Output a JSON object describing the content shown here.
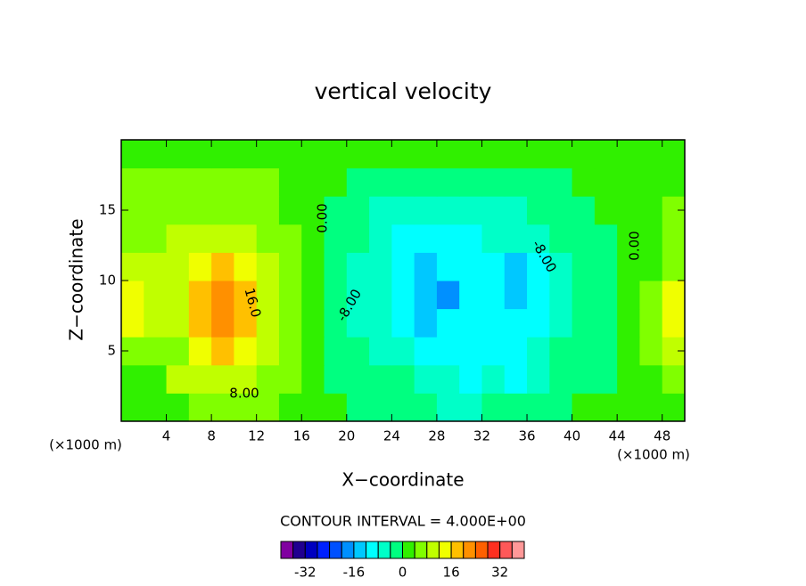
{
  "chart_data": {
    "type": "contour",
    "title": "vertical velocity",
    "x_label": "X−coordinate",
    "y_label": "Z−coordinate",
    "x_unit": "(×1000 m)",
    "y_unit": "(×1000 m)",
    "interval_text": "CONTOUR INTERVAL = 4.000E+00",
    "contour_labels": [
      "0.00",
      "16.0",
      "8.00",
      "-8.00"
    ],
    "xlim": [
      0,
      50
    ],
    "ylim": [
      0,
      20
    ],
    "xticks": [
      4,
      8,
      12,
      16,
      20,
      24,
      28,
      32,
      36,
      40,
      44,
      48
    ],
    "yticks": [
      5,
      10,
      15
    ],
    "x": [
      1,
      3,
      5,
      7,
      9,
      11,
      13,
      15,
      17,
      19,
      21,
      23,
      25,
      27,
      29,
      31,
      33,
      35,
      37,
      39,
      41,
      43,
      45,
      47,
      49
    ],
    "y": [
      1,
      3,
      5,
      7,
      9,
      11,
      13,
      15,
      17,
      19
    ],
    "z": [
      [
        2,
        1,
        2,
        5,
        5,
        5,
        4,
        2,
        1,
        0,
        -1,
        -1,
        -2,
        -2,
        -5,
        -6,
        -3,
        -2,
        -1,
        -1,
        1,
        1,
        1,
        2,
        3
      ],
      [
        3,
        2,
        8,
        9,
        9,
        9,
        6,
        4,
        1,
        -1,
        -2,
        -3,
        -4,
        -5,
        -8,
        -9,
        -8,
        -9,
        -5,
        -3,
        -1,
        -1,
        2,
        3,
        7
      ],
      [
        6,
        6,
        7,
        13,
        16,
        14,
        8,
        5,
        1,
        -2,
        -3,
        -6,
        -7,
        -9,
        -11,
        -10,
        -10,
        -9,
        -7,
        -4,
        -2,
        -1,
        1,
        4,
        9
      ],
      [
        12,
        8,
        8,
        17,
        20,
        18,
        9,
        5,
        1,
        -2,
        -5,
        -7,
        -10,
        -13,
        -12,
        -11,
        -11,
        -12,
        -9,
        -5,
        -3,
        -1,
        1,
        5,
        12
      ],
      [
        13,
        9,
        9,
        18,
        22,
        17,
        9,
        5,
        1,
        -2,
        -6,
        -8,
        -12,
        -14,
        -18,
        -10,
        -10,
        -14,
        -10,
        -5,
        -3,
        -1,
        1,
        4,
        13
      ],
      [
        9,
        8,
        9,
        14,
        18,
        14,
        8,
        5,
        1,
        -2,
        -5,
        -8,
        -11,
        -13,
        -11,
        -10,
        -10,
        -13,
        -9,
        -5,
        -3,
        -1,
        1,
        3,
        7
      ],
      [
        7,
        7,
        8,
        9,
        10,
        9,
        7,
        4,
        1,
        -2,
        -4,
        -6,
        -9,
        -10,
        -9,
        -9,
        -8,
        -8,
        -6,
        -3,
        -2,
        -1,
        1,
        3,
        6
      ],
      [
        6,
        6,
        7,
        7,
        7,
        7,
        6,
        3,
        1,
        -1,
        -3,
        -5,
        -6,
        -6,
        -7,
        -6,
        -6,
        -5,
        -4,
        -2,
        -1,
        1,
        1,
        3,
        5
      ],
      [
        5,
        5,
        5,
        5,
        5,
        5,
        4,
        3,
        1,
        1,
        -1,
        -2,
        -3,
        -3,
        -3,
        -3,
        -3,
        -2,
        -2,
        -1,
        1,
        1,
        1,
        2,
        3
      ],
      [
        2,
        2,
        2,
        2,
        2,
        2,
        2,
        2,
        1,
        1,
        1,
        1,
        1,
        1,
        1,
        1,
        1,
        1,
        1,
        1,
        1,
        1,
        1,
        2,
        2
      ]
    ],
    "colorbar": {
      "levels": [
        -40,
        -36,
        -32,
        -28,
        -24,
        -20,
        -16,
        -12,
        -8,
        -4,
        0,
        4,
        8,
        12,
        16,
        20,
        24,
        28,
        32,
        36,
        40
      ],
      "colors": [
        "#8000a0",
        "#200090",
        "#0000c0",
        "#0020ff",
        "#0050ff",
        "#0090ff",
        "#00c8ff",
        "#00ffff",
        "#00ffc8",
        "#00ff80",
        "#30f000",
        "#80ff00",
        "#c0ff00",
        "#f0ff00",
        "#ffc000",
        "#ff9000",
        "#ff6000",
        "#ff3020",
        "#ff5858",
        "#ff9898"
      ],
      "ticks": [
        -32,
        -16,
        0,
        16,
        32
      ]
    }
  }
}
